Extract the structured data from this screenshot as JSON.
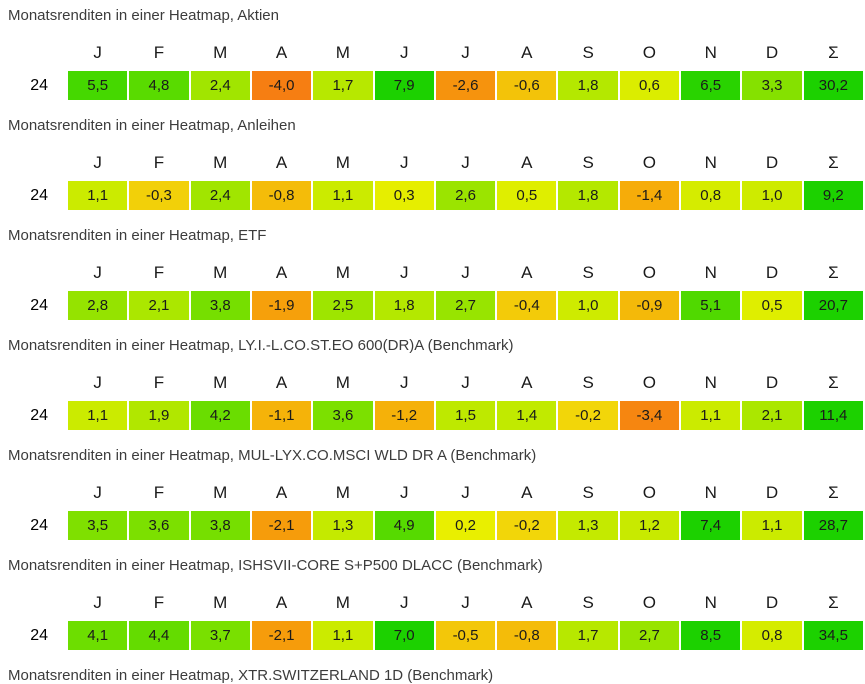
{
  "columns": [
    "J",
    "F",
    "M",
    "A",
    "M",
    "J",
    "J",
    "A",
    "S",
    "O",
    "N",
    "D",
    "Σ"
  ],
  "color_scale": {
    "cap_abs_value": 7,
    "max_positive": "#1CD100",
    "zero": "#EFEF00",
    "strong_negative": "#F57D1F",
    "cell_text": "#1A1A1A",
    "title_text": "#3C3C3C",
    "background": "#FFFFFF"
  },
  "chart_data": [
    {
      "type": "heatmap",
      "title": "Monatsrenditen in einer Heatmap, Aktien",
      "columns": [
        "J",
        "F",
        "M",
        "A",
        "M",
        "J",
        "J",
        "A",
        "S",
        "O",
        "N",
        "D",
        "Σ"
      ],
      "row_label": "24",
      "values": [
        5.5,
        4.8,
        2.4,
        -4.0,
        1.7,
        7.9,
        -2.6,
        -0.6,
        1.8,
        0.6,
        6.5,
        3.3
      ],
      "sum": 30.2
    },
    {
      "type": "heatmap",
      "title": "Monatsrenditen in einer Heatmap, Anleihen",
      "columns": [
        "J",
        "F",
        "M",
        "A",
        "M",
        "J",
        "J",
        "A",
        "S",
        "O",
        "N",
        "D",
        "Σ"
      ],
      "row_label": "24",
      "values": [
        1.1,
        -0.3,
        2.4,
        -0.8,
        1.1,
        0.3,
        2.6,
        0.5,
        1.8,
        -1.4,
        0.8,
        1.0
      ],
      "sum": 9.2
    },
    {
      "type": "heatmap",
      "title": "Monatsrenditen in einer Heatmap, ETF",
      "columns": [
        "J",
        "F",
        "M",
        "A",
        "M",
        "J",
        "J",
        "A",
        "S",
        "O",
        "N",
        "D",
        "Σ"
      ],
      "row_label": "24",
      "values": [
        2.8,
        2.1,
        3.8,
        -1.9,
        2.5,
        1.8,
        2.7,
        -0.4,
        1.0,
        -0.9,
        5.1,
        0.5
      ],
      "sum": 20.7
    },
    {
      "type": "heatmap",
      "title": "Monatsrenditen in einer Heatmap, LY.I.-L.CO.ST.EO 600(DR)A (Benchmark)",
      "columns": [
        "J",
        "F",
        "M",
        "A",
        "M",
        "J",
        "J",
        "A",
        "S",
        "O",
        "N",
        "D",
        "Σ"
      ],
      "row_label": "24",
      "values": [
        1.1,
        1.9,
        4.2,
        -1.1,
        3.6,
        -1.2,
        1.5,
        1.4,
        -0.2,
        -3.4,
        1.1,
        2.1
      ],
      "sum": 11.4
    },
    {
      "type": "heatmap",
      "title": "Monatsrenditen in einer Heatmap, MUL-LYX.CO.MSCI WLD DR A (Benchmark)",
      "columns": [
        "J",
        "F",
        "M",
        "A",
        "M",
        "J",
        "J",
        "A",
        "S",
        "O",
        "N",
        "D",
        "Σ"
      ],
      "row_label": "24",
      "values": [
        3.5,
        3.6,
        3.8,
        -2.1,
        1.3,
        4.9,
        0.2,
        -0.2,
        1.3,
        1.2,
        7.4,
        1.1
      ],
      "sum": 28.7
    },
    {
      "type": "heatmap",
      "title": "Monatsrenditen in einer Heatmap, ISHSVII-CORE S+P500 DLACC (Benchmark)",
      "columns": [
        "J",
        "F",
        "M",
        "A",
        "M",
        "J",
        "J",
        "A",
        "S",
        "O",
        "N",
        "D",
        "Σ"
      ],
      "row_label": "24",
      "values": [
        4.1,
        4.4,
        3.7,
        -2.1,
        1.1,
        7.0,
        -0.5,
        -0.8,
        1.7,
        2.7,
        8.5,
        0.8
      ],
      "sum": 34.5
    },
    {
      "type": "heatmap",
      "title": "Monatsrenditen in einer Heatmap, XTR.SWITZERLAND 1D (Benchmark)",
      "columns": [],
      "row_label": null,
      "values": [],
      "sum": null
    }
  ]
}
